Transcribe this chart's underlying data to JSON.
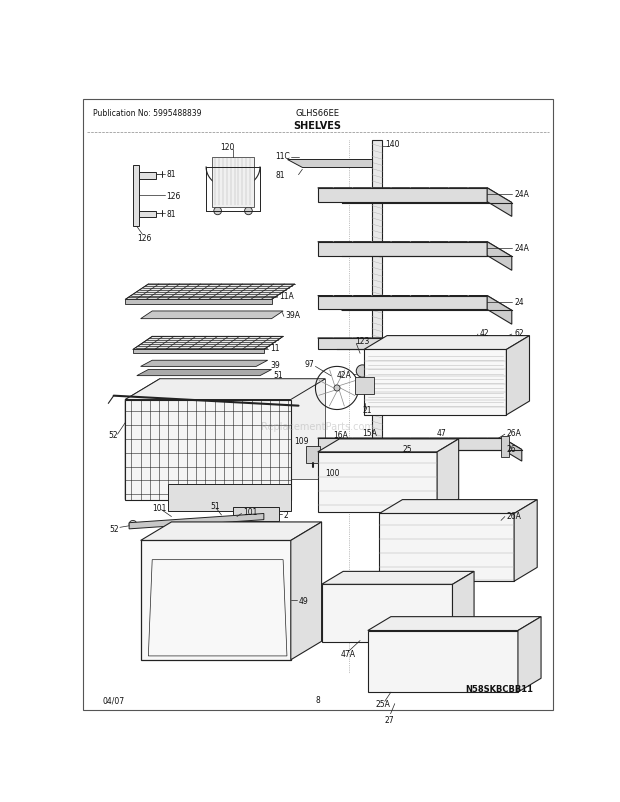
{
  "title": "SHELVES",
  "model": "GLHS66EE",
  "publication": "Publication No: 5995488839",
  "page": "8",
  "date": "04/07",
  "watermark": "ReplacementParts.com",
  "copyright": "N58SKBCBB11",
  "bg_color": "#ffffff",
  "text_color": "#111111",
  "line_color": "#222222",
  "gray": "#888888",
  "dgray": "#333333",
  "lgray": "#aaaaaa"
}
